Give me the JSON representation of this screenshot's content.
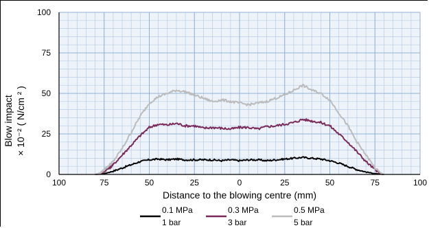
{
  "chart_data": {
    "type": "line",
    "xlabel": "Distance to the blowing centre (mm)",
    "ylabel_line1": "Blow impact",
    "ylabel_line2": "× 10⁻² ( N/cm ² )",
    "x_tick_values": [
      -100,
      -75,
      -50,
      -25,
      0,
      25,
      50,
      75,
      100
    ],
    "x_tick_labels": [
      "100",
      "75",
      "50",
      "25",
      "0",
      "25",
      "50",
      "75",
      "100"
    ],
    "y_ticks": [
      0,
      25,
      50,
      75,
      100
    ],
    "xlim": [
      -100,
      100
    ],
    "ylim": [
      0,
      100
    ],
    "grid": true,
    "legend_position": "bottom",
    "series": [
      {
        "name_line1": "0.1 MPa",
        "name_line2": "1 bar",
        "color": "#000000",
        "x": [
          -80,
          -75,
          -70,
          -65,
          -60,
          -55,
          -50,
          -45,
          -40,
          -35,
          -30,
          -25,
          -20,
          -15,
          -10,
          -5,
          0,
          5,
          10,
          15,
          20,
          25,
          30,
          35,
          40,
          45,
          50,
          55,
          60,
          65,
          70,
          75,
          80
        ],
        "y": [
          0,
          0.5,
          2,
          4,
          6,
          8,
          9,
          9.5,
          9,
          9.5,
          9,
          9,
          9,
          9,
          8.5,
          9,
          8.5,
          9,
          9,
          8.5,
          9,
          9.5,
          10,
          10.5,
          10,
          9.5,
          8.5,
          7,
          5,
          3,
          1.5,
          0.5,
          0
        ]
      },
      {
        "name_line1": "0.3 MPa",
        "name_line2": "3 bar",
        "color": "#7a2a5a",
        "x": [
          -80,
          -77,
          -75,
          -72,
          -70,
          -65,
          -60,
          -55,
          -50,
          -45,
          -40,
          -35,
          -30,
          -25,
          -20,
          -15,
          -10,
          -5,
          0,
          5,
          10,
          15,
          20,
          25,
          30,
          35,
          40,
          45,
          50,
          55,
          60,
          65,
          70,
          75,
          78,
          80
        ],
        "y": [
          0,
          0.5,
          2,
          4,
          6,
          12,
          18,
          24,
          29,
          31,
          30.5,
          31.5,
          30,
          30,
          28.5,
          29,
          28.5,
          28,
          29,
          29,
          28,
          29.5,
          30,
          31,
          32,
          34,
          33,
          32,
          30,
          25,
          20,
          14,
          8,
          3,
          0.5,
          0
        ]
      },
      {
        "name_line1": "0.5 MPa",
        "name_line2": "5 bar",
        "color": "#bbbbbb",
        "x": [
          -80,
          -77,
          -75,
          -72,
          -70,
          -65,
          -60,
          -55,
          -50,
          -45,
          -40,
          -35,
          -30,
          -25,
          -20,
          -15,
          -10,
          -5,
          0,
          5,
          10,
          15,
          20,
          25,
          30,
          35,
          40,
          45,
          50,
          55,
          60,
          65,
          70,
          75,
          78,
          80
        ],
        "y": [
          0,
          1,
          3,
          6,
          8,
          16,
          26,
          36,
          44,
          48,
          50,
          52,
          51,
          49,
          47,
          45,
          46,
          45,
          44,
          43,
          44,
          45,
          47,
          49,
          52,
          55,
          52,
          50,
          46,
          38,
          30,
          20,
          12,
          4,
          1,
          0
        ]
      }
    ]
  }
}
